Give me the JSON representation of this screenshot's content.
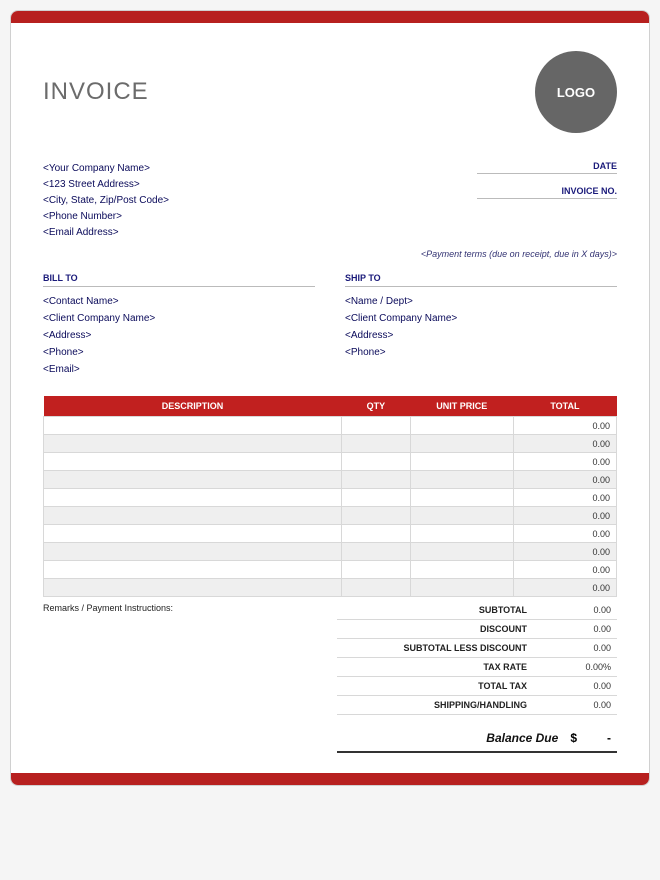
{
  "colors": {
    "accent": "#b7201f",
    "table_header": "#c1201f",
    "text_dark": "#0a0a5a",
    "logo_bg": "#666666",
    "border": "#d8d8d8",
    "row_alt": "#efefef",
    "background": "#ffffff"
  },
  "header": {
    "title": "INVOICE",
    "logo_text": "LOGO"
  },
  "company": {
    "name": "<Your Company Name>",
    "address1": "<123 Street Address>",
    "address2": "<City, State, Zip/Post Code>",
    "phone": "<Phone Number>",
    "email": "<Email Address>"
  },
  "meta": {
    "date_label": "DATE",
    "invoice_no_label": "INVOICE NO.",
    "payment_terms": "<Payment terms (due on receipt, due in X days)>"
  },
  "bill_to": {
    "heading": "BILL TO",
    "contact": "<Contact Name>",
    "company": "<Client Company Name>",
    "address": "<Address>",
    "phone": "<Phone>",
    "email": "<Email>"
  },
  "ship_to": {
    "heading": "SHIP TO",
    "name": "<Name / Dept>",
    "company": "<Client Company Name>",
    "address": "<Address>",
    "phone": "<Phone>"
  },
  "table": {
    "columns": [
      "DESCRIPTION",
      "QTY",
      "UNIT PRICE",
      "TOTAL"
    ],
    "rows": [
      {
        "description": "",
        "qty": "",
        "unit_price": "",
        "total": "0.00"
      },
      {
        "description": "",
        "qty": "",
        "unit_price": "",
        "total": "0.00"
      },
      {
        "description": "",
        "qty": "",
        "unit_price": "",
        "total": "0.00"
      },
      {
        "description": "",
        "qty": "",
        "unit_price": "",
        "total": "0.00"
      },
      {
        "description": "",
        "qty": "",
        "unit_price": "",
        "total": "0.00"
      },
      {
        "description": "",
        "qty": "",
        "unit_price": "",
        "total": "0.00"
      },
      {
        "description": "",
        "qty": "",
        "unit_price": "",
        "total": "0.00"
      },
      {
        "description": "",
        "qty": "",
        "unit_price": "",
        "total": "0.00"
      },
      {
        "description": "",
        "qty": "",
        "unit_price": "",
        "total": "0.00"
      },
      {
        "description": "",
        "qty": "",
        "unit_price": "",
        "total": "0.00"
      }
    ]
  },
  "remarks_label": "Remarks / Payment Instructions:",
  "totals": {
    "subtotal_label": "SUBTOTAL",
    "subtotal_value": "0.00",
    "discount_label": "DISCOUNT",
    "discount_value": "0.00",
    "subtotal_less_label": "SUBTOTAL LESS DISCOUNT",
    "subtotal_less_value": "0.00",
    "tax_rate_label": "TAX RATE",
    "tax_rate_value": "0.00%",
    "total_tax_label": "TOTAL TAX",
    "total_tax_value": "0.00",
    "shipping_label": "SHIPPING/HANDLING",
    "shipping_value": "0.00",
    "balance_label": "Balance Due",
    "balance_currency": "$",
    "balance_value": "-"
  }
}
